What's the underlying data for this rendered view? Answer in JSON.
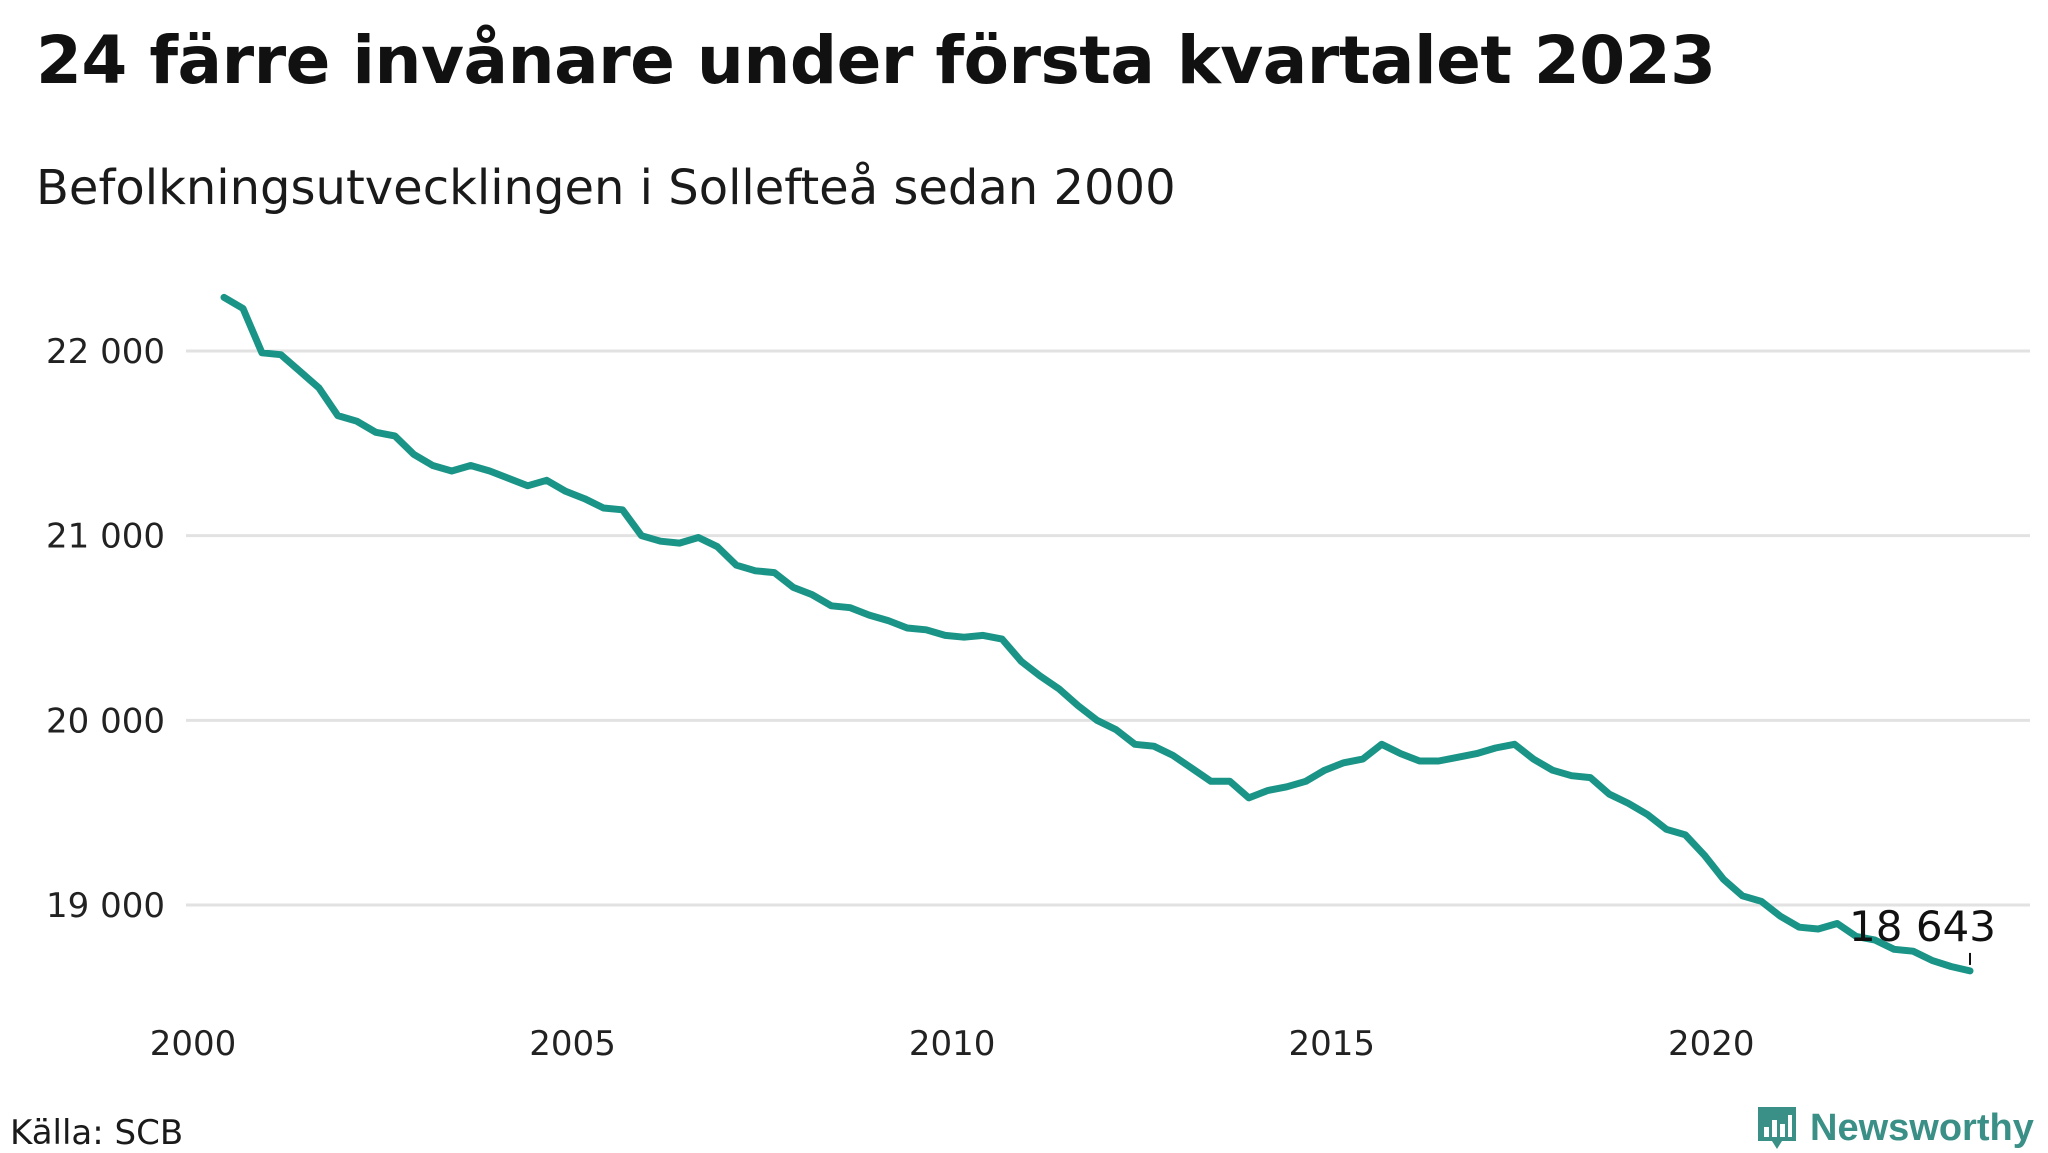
{
  "title": "24 färre invånare under första kvartalet 2023",
  "subtitle": "Befolkningsutvecklingen i Sollefteå sedan 2000",
  "source": "Källa: SCB",
  "brand": {
    "name": "Newsworthy",
    "icon": "newsworthy-logo-icon",
    "color": "#3a8f86"
  },
  "chart_data": {
    "type": "line",
    "title": "24 färre invånare under första kvartalet 2023",
    "subtitle": "Befolkningsutvecklingen i Sollefteå sedan 2000",
    "xlabel": "",
    "ylabel": "",
    "xlim": [
      2000,
      2023.25
    ],
    "ylim": [
      18500,
      22400
    ],
    "grid": true,
    "line_color": "#1a9486",
    "x_ticks": [
      2000,
      2005,
      2010,
      2015,
      2020
    ],
    "x_tick_labels": [
      "2000",
      "2005",
      "2010",
      "2015",
      "2020"
    ],
    "y_ticks": [
      19000,
      20000,
      21000,
      22000
    ],
    "y_tick_labels": [
      "19 000",
      "20 000",
      "21 000",
      "22 000"
    ],
    "end_label": "18 643",
    "series": [
      {
        "x": [
          2000.25,
          2000.5,
          2000.75,
          2001,
          2001.25,
          2001.5,
          2001.75,
          2002,
          2002.25,
          2002.5,
          2002.75,
          2003,
          2003.25,
          2003.5,
          2003.75,
          2004,
          2004.25,
          2004.5,
          2004.75,
          2005,
          2005.25,
          2005.5,
          2005.75,
          2006,
          2006.25,
          2006.5,
          2006.75,
          2007,
          2007.25,
          2007.5,
          2007.75,
          2008,
          2008.25,
          2008.5,
          2008.75,
          2009,
          2009.25,
          2009.5,
          2009.75,
          2010,
          2010.25,
          2010.5,
          2010.75,
          2011,
          2011.25,
          2011.5,
          2011.75,
          2012,
          2012.25,
          2012.5,
          2012.75,
          2013,
          2013.25,
          2013.5,
          2013.75,
          2014,
          2014.25,
          2014.5,
          2014.75,
          2015,
          2015.25,
          2015.5,
          2015.75,
          2016,
          2016.25,
          2016.5,
          2016.75,
          2017,
          2017.25,
          2017.5,
          2017.75,
          2018,
          2018.25,
          2018.5,
          2018.75,
          2019,
          2019.25,
          2019.5,
          2019.75,
          2020,
          2020.25,
          2020.5,
          2020.75,
          2021,
          2021.25,
          2021.5,
          2021.75,
          2022,
          2022.25,
          2022.5,
          2022.75,
          2023,
          2023.25
        ],
        "values": [
          22290,
          22230,
          21990,
          21980,
          21890,
          21800,
          21650,
          21620,
          21560,
          21540,
          21440,
          21380,
          21350,
          21380,
          21350,
          21310,
          21270,
          21300,
          21240,
          21200,
          21150,
          21140,
          21000,
          20970,
          20960,
          20990,
          20940,
          20840,
          20810,
          20800,
          20720,
          20680,
          20620,
          20610,
          20570,
          20540,
          20500,
          20490,
          20460,
          20450,
          20460,
          20440,
          20320,
          20240,
          20170,
          20080,
          20000,
          19950,
          19870,
          19860,
          19810,
          19740,
          19670,
          19670,
          19580,
          19620,
          19640,
          19670,
          19730,
          19770,
          19790,
          19870,
          19820,
          19780,
          19780,
          19800,
          19820,
          19850,
          19870,
          19790,
          19730,
          19700,
          19690,
          19600,
          19550,
          19490,
          19410,
          19380,
          19270,
          19140,
          19050,
          19020,
          18940,
          18880,
          18870,
          18900,
          18830,
          18810,
          18760,
          18750,
          18700,
          18667,
          18643
        ]
      }
    ]
  }
}
